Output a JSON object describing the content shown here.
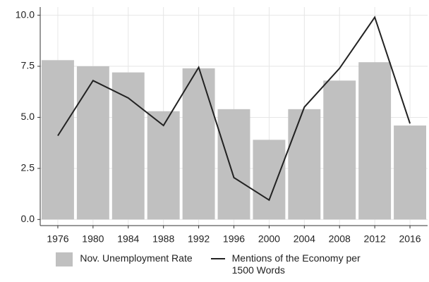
{
  "chart_data": {
    "type": "bar",
    "categories": [
      "1976",
      "1980",
      "1984",
      "1988",
      "1992",
      "1996",
      "2000",
      "2004",
      "2008",
      "2012",
      "2016"
    ],
    "series": [
      {
        "name": "Nov. Unemployment Rate",
        "type": "bar",
        "color": "#c0c0c0",
        "values": [
          7.8,
          7.5,
          7.2,
          5.3,
          7.4,
          5.4,
          3.9,
          5.4,
          6.8,
          7.7,
          4.6
        ]
      },
      {
        "name": "Mentions of the Economy per 1500 Words",
        "type": "line",
        "color": "#222222",
        "values": [
          4.1,
          6.8,
          5.95,
          4.6,
          7.45,
          2.05,
          0.95,
          5.5,
          7.4,
          9.9,
          4.7
        ]
      }
    ],
    "ylim": [
      -0.3,
      10.4
    ],
    "yticks": [
      {
        "value": 0,
        "label": "0.0"
      },
      {
        "value": 2.5,
        "label": "2.5"
      },
      {
        "value": 5,
        "label": "5.0"
      },
      {
        "value": 7.5,
        "label": "7.5"
      },
      {
        "value": 10,
        "label": "10.0"
      }
    ],
    "grid": true
  }
}
